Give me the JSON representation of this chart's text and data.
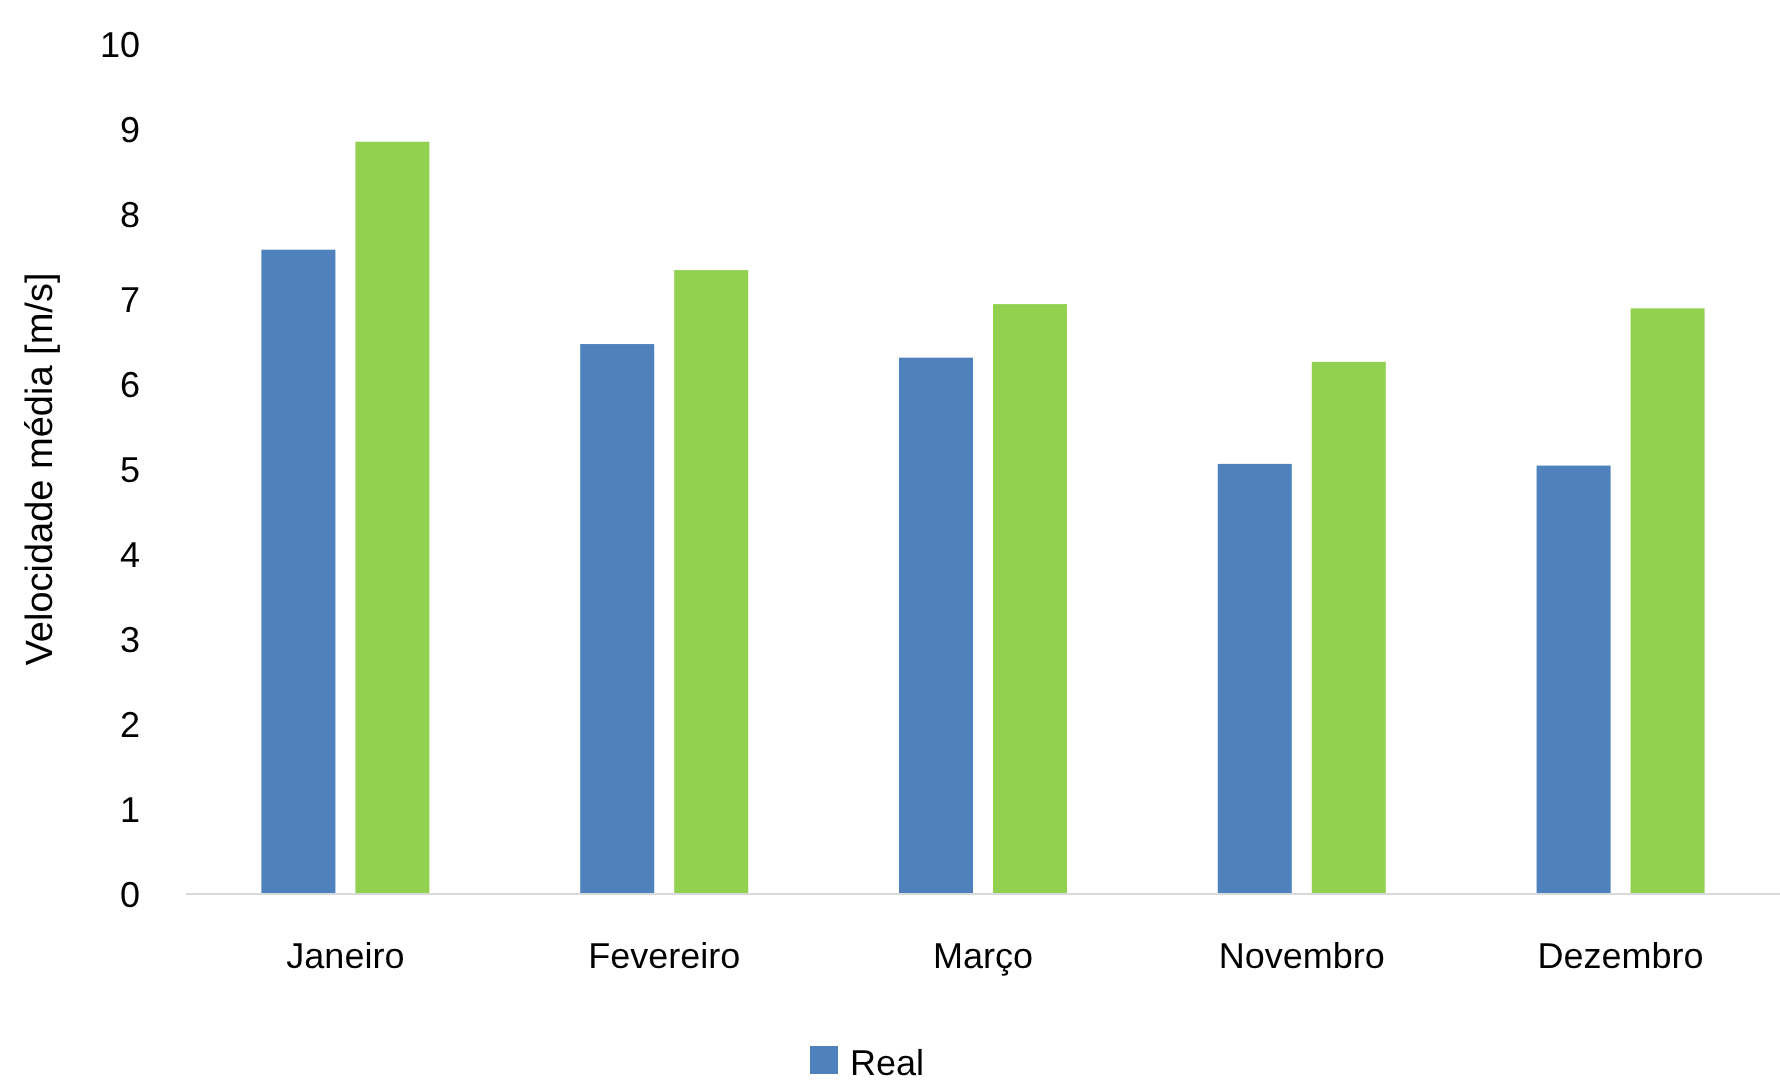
{
  "chart_data": {
    "type": "bar",
    "ylabel": "Velocidade média [m/s]",
    "categories": [
      "Janeiro",
      "Fevereiro",
      "Março",
      "Novembro",
      "Dezembro"
    ],
    "series": [
      {
        "name": "Real",
        "color": "#4f81bd",
        "values": [
          7.58,
          6.47,
          6.31,
          5.06,
          5.04
        ]
      },
      {
        "color": "#92d050",
        "values": [
          8.85,
          7.34,
          6.94,
          6.26,
          6.89
        ]
      }
    ],
    "ylim": [
      0,
      10
    ],
    "yticks": [
      0,
      1,
      2,
      3,
      4,
      5,
      6,
      7,
      8,
      9,
      10
    ],
    "grid": false,
    "legend": "bottom"
  }
}
